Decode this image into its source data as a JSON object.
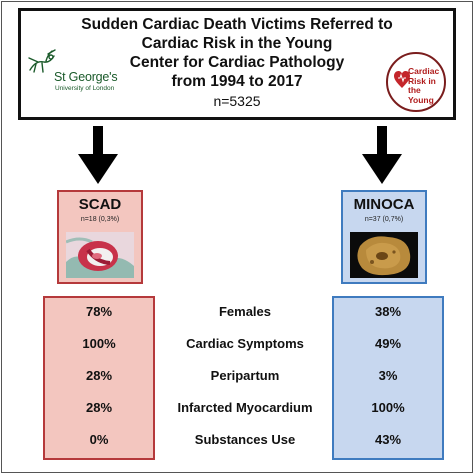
{
  "header": {
    "title_lines": [
      "Sudden Cardiac Death Victims Referred to",
      "Cardiac Risk in the Young",
      "Center for Cardiac Pathology",
      "from 1994 to 2017"
    ],
    "n": "n=5325",
    "left_logo": {
      "icon": "st-georges-crest-icon",
      "name": "St George's",
      "subtitle": "University of London",
      "color": "#1a5a2a"
    },
    "right_logo": {
      "icon": "heart-icon",
      "text_lines": [
        "Cardiac",
        "Risk in the",
        "Young"
      ],
      "color": "#b01c1c"
    }
  },
  "groups": {
    "scad": {
      "name": "SCAD",
      "n": "n=18 (0,3%)",
      "color": "#b5393b",
      "fill": "#f3c6bf",
      "image": "coronary-dissection-histology-image"
    },
    "minoca": {
      "name": "MINOCA",
      "n": "n=37 (0,7%)",
      "color": "#3f7bbf",
      "fill": "#c7d7ef",
      "image": "myocardium-gross-section-image"
    }
  },
  "rows": [
    {
      "label": "Females",
      "scad": "78%",
      "minoca": "38%"
    },
    {
      "label": "Cardiac Symptoms",
      "scad": "100%",
      "minoca": "49%"
    },
    {
      "label": "Peripartum",
      "scad": "28%",
      "minoca": "3%"
    },
    {
      "label": "Infarcted Myocardium",
      "scad": "28%",
      "minoca": "100%"
    },
    {
      "label": "Substances Use",
      "scad": "0%",
      "minoca": "43%"
    }
  ]
}
